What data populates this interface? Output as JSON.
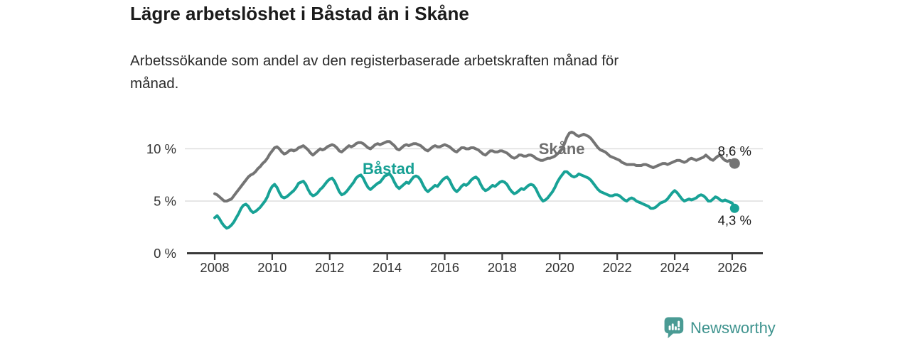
{
  "header": {
    "title": "Lägre arbetslöshet i Båstad än i Skåne",
    "subtitle_lines": [
      "Arbetssökande som andel av den registerbaserade arbetskraften månad för",
      "månad."
    ]
  },
  "footer": {
    "brand": "Newsworthy",
    "brand_color": "#3e938e"
  },
  "chart_data": {
    "type": "line",
    "title": "Lägre arbetslöshet i Båstad än i Skåne",
    "subtitle": "Arbetssökande som andel av den registerbaserade arbetskraften månad för månad.",
    "unit": "%",
    "grid": "horizontal-only",
    "legend_position": "inline-labels",
    "x_axis": {
      "start_year": 2008,
      "interval": "monthly",
      "tick_years": [
        2008,
        2010,
        2012,
        2014,
        2016,
        2018,
        2020,
        2022,
        2024,
        2026
      ]
    },
    "y_axis": {
      "range": [
        0,
        12.5
      ],
      "ticks": [
        {
          "value": 0,
          "label": "0 %"
        },
        {
          "value": 5,
          "label": "5 %"
        },
        {
          "value": 10,
          "label": "10 %"
        }
      ]
    },
    "colors": {
      "grid": "#d8d8d8",
      "axis": "#3a3a3a",
      "tick_text": "#333333",
      "value_text": "#1a1a1a"
    },
    "series": [
      {
        "id": "skane",
        "name": "Skåne",
        "color": "#747474",
        "label_color": "#6e6e6e",
        "end_label": "8,6 %",
        "end_value": 8.6,
        "label_pos": {
          "year": 2020.07,
          "value": 10.0
        },
        "values": [
          5.7,
          5.6,
          5.4,
          5.2,
          5.0,
          5.0,
          5.1,
          5.2,
          5.5,
          5.8,
          6.1,
          6.4,
          6.7,
          7.0,
          7.3,
          7.5,
          7.6,
          7.8,
          8.1,
          8.3,
          8.6,
          8.8,
          9.1,
          9.5,
          9.8,
          10.1,
          10.2,
          10.0,
          9.7,
          9.5,
          9.6,
          9.8,
          9.9,
          9.8,
          9.9,
          10.1,
          10.2,
          10.3,
          10.1,
          9.9,
          9.6,
          9.4,
          9.6,
          9.8,
          10.0,
          9.9,
          10.0,
          10.2,
          10.3,
          10.4,
          10.3,
          10.1,
          9.8,
          9.7,
          9.9,
          10.1,
          10.3,
          10.2,
          10.3,
          10.5,
          10.6,
          10.6,
          10.5,
          10.3,
          10.1,
          10.0,
          10.2,
          10.4,
          10.5,
          10.4,
          10.5,
          10.6,
          10.7,
          10.7,
          10.5,
          10.3,
          10.0,
          9.9,
          10.1,
          10.3,
          10.4,
          10.3,
          10.4,
          10.5,
          10.5,
          10.4,
          10.3,
          10.1,
          9.9,
          9.8,
          10.0,
          10.2,
          10.3,
          10.2,
          10.2,
          10.3,
          10.4,
          10.3,
          10.2,
          10.0,
          9.8,
          9.7,
          9.9,
          10.1,
          10.1,
          10.0,
          10.0,
          10.1,
          10.1,
          10.0,
          9.9,
          9.7,
          9.5,
          9.4,
          9.6,
          9.8,
          9.8,
          9.7,
          9.7,
          9.8,
          9.8,
          9.7,
          9.6,
          9.4,
          9.2,
          9.1,
          9.2,
          9.4,
          9.4,
          9.3,
          9.3,
          9.4,
          9.4,
          9.3,
          9.1,
          9.0,
          8.9,
          8.9,
          9.0,
          9.1,
          9.1,
          9.2,
          9.3,
          9.5,
          9.7,
          10.0,
          10.5,
          11.1,
          11.5,
          11.6,
          11.5,
          11.3,
          11.2,
          11.3,
          11.4,
          11.3,
          11.2,
          11.0,
          10.7,
          10.4,
          10.1,
          9.9,
          9.8,
          9.7,
          9.5,
          9.3,
          9.2,
          9.1,
          9.0,
          8.9,
          8.7,
          8.6,
          8.5,
          8.5,
          8.5,
          8.5,
          8.4,
          8.4,
          8.4,
          8.5,
          8.5,
          8.4,
          8.3,
          8.2,
          8.3,
          8.4,
          8.5,
          8.6,
          8.6,
          8.5,
          8.6,
          8.7,
          8.8,
          8.9,
          8.9,
          8.8,
          8.7,
          8.8,
          9.0,
          9.1,
          9.0,
          8.9,
          9.0,
          9.1,
          9.2,
          9.4,
          9.2,
          9.0,
          8.9,
          9.1,
          9.3,
          9.4,
          9.1,
          8.9,
          8.8,
          8.9,
          8.8,
          8.6
        ]
      },
      {
        "id": "bastad",
        "name": "Båstad",
        "color": "#18a296",
        "label_color": "#17a094",
        "end_label": "4,3 %",
        "end_value": 4.3,
        "label_pos": {
          "year": 2014.05,
          "value": 8.1
        },
        "values": [
          3.4,
          3.6,
          3.3,
          2.9,
          2.6,
          2.4,
          2.5,
          2.7,
          3.0,
          3.4,
          3.8,
          4.3,
          4.6,
          4.7,
          4.5,
          4.1,
          3.9,
          4.0,
          4.2,
          4.4,
          4.7,
          5.0,
          5.4,
          6.0,
          6.4,
          6.6,
          6.3,
          5.8,
          5.4,
          5.3,
          5.4,
          5.6,
          5.8,
          6.0,
          6.3,
          6.7,
          6.8,
          6.9,
          6.6,
          6.1,
          5.7,
          5.5,
          5.6,
          5.8,
          6.1,
          6.3,
          6.6,
          6.9,
          7.1,
          7.2,
          6.9,
          6.4,
          5.9,
          5.6,
          5.7,
          5.9,
          6.2,
          6.5,
          6.8,
          7.2,
          7.4,
          7.5,
          7.2,
          6.7,
          6.3,
          6.1,
          6.3,
          6.5,
          6.7,
          6.8,
          7.1,
          7.4,
          7.5,
          7.6,
          7.3,
          6.8,
          6.4,
          6.2,
          6.4,
          6.6,
          6.8,
          6.7,
          7.0,
          7.3,
          7.4,
          7.3,
          7.0,
          6.5,
          6.1,
          5.9,
          6.1,
          6.3,
          6.5,
          6.4,
          6.7,
          7.0,
          7.2,
          7.3,
          7.0,
          6.5,
          6.1,
          5.9,
          6.1,
          6.4,
          6.6,
          6.5,
          6.7,
          7.0,
          7.2,
          7.3,
          7.1,
          6.6,
          6.2,
          6.0,
          6.1,
          6.3,
          6.5,
          6.4,
          6.6,
          6.8,
          6.9,
          6.8,
          6.6,
          6.2,
          5.9,
          5.7,
          5.8,
          6.0,
          6.2,
          6.1,
          6.3,
          6.5,
          6.6,
          6.5,
          6.2,
          5.7,
          5.3,
          5.0,
          5.1,
          5.3,
          5.6,
          5.9,
          6.3,
          6.8,
          7.2,
          7.5,
          7.8,
          7.8,
          7.6,
          7.4,
          7.3,
          7.4,
          7.6,
          7.5,
          7.4,
          7.3,
          7.2,
          7.0,
          6.7,
          6.4,
          6.1,
          5.9,
          5.8,
          5.7,
          5.6,
          5.5,
          5.5,
          5.6,
          5.6,
          5.5,
          5.3,
          5.1,
          5.0,
          5.2,
          5.3,
          5.2,
          5.0,
          4.9,
          4.8,
          4.7,
          4.6,
          4.5,
          4.3,
          4.3,
          4.4,
          4.6,
          4.8,
          4.9,
          5.0,
          5.2,
          5.5,
          5.8,
          6.0,
          5.8,
          5.5,
          5.2,
          5.0,
          5.1,
          5.2,
          5.1,
          5.2,
          5.3,
          5.5,
          5.6,
          5.5,
          5.3,
          5.0,
          5.0,
          5.2,
          5.4,
          5.3,
          5.1,
          5.0,
          5.1,
          5.0,
          4.9,
          4.8,
          4.3
        ]
      }
    ]
  }
}
